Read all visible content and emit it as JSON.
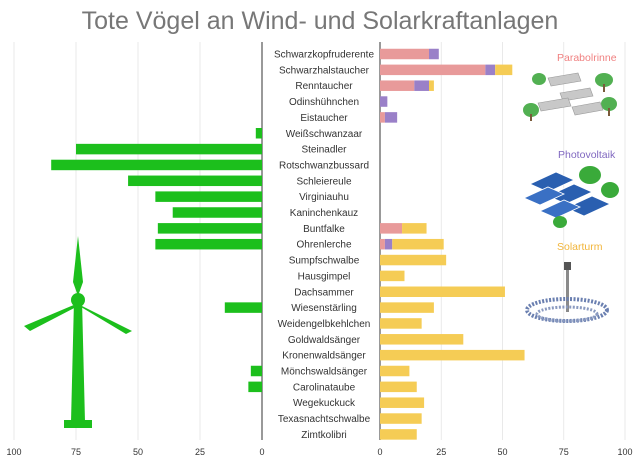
{
  "chart_data": {
    "type": "bar",
    "title": "Tote Vögel an Wind- und Solarkraftanlagen",
    "categories": [
      "Schwarzkopfruderente",
      "Schwarzhalstaucher",
      "Renntaucher",
      "Odinshühnchen",
      "Eistaucher",
      "Weißschwanzaar",
      "Steinadler",
      "Rotschwanzbussard",
      "Schleiereule",
      "Virginiauhu",
      "Kaninchenkauz",
      "Buntfalke",
      "Ohrenlerche",
      "Sumpfschwalbe",
      "Hausgimpel",
      "Dachsammer",
      "Wiesenstärling",
      "Weidengelbkehlchen",
      "Goldwaldsänger",
      "Kronenwaldsänger",
      "Mönchswaldsänger",
      "Carolinataube",
      "Wegekuckuck",
      "Texasnachtschwalbe",
      "Zimtkolibri"
    ],
    "wind": {
      "values": [
        0,
        0,
        0,
        0,
        0,
        2.5,
        75,
        85,
        54,
        43,
        36,
        42,
        43,
        0,
        0,
        0,
        15,
        0,
        0,
        0,
        4.5,
        5.5,
        0,
        0,
        0
      ],
      "color": "#1cbf1c",
      "xlim": [
        0,
        100
      ],
      "ticks": [
        100,
        75,
        50,
        25,
        0
      ]
    },
    "solar": {
      "series": [
        {
          "name": "Parabolrinne",
          "color": "#e89a9a",
          "values": [
            20,
            43,
            14,
            0,
            2,
            0,
            0,
            0,
            0,
            0,
            0,
            9,
            2,
            0,
            0,
            0,
            0,
            0,
            0,
            0,
            0,
            0,
            0,
            0,
            0
          ]
        },
        {
          "name": "Photovoltaik",
          "color": "#9a80c8",
          "values": [
            4,
            4,
            6,
            3,
            5,
            0,
            0,
            0,
            0,
            0,
            0,
            0,
            3,
            0,
            0,
            0,
            0,
            0,
            0,
            0,
            0,
            0,
            0,
            0,
            0
          ]
        },
        {
          "name": "Solarturm",
          "color": "#f5cc55",
          "values": [
            0,
            7,
            2,
            0,
            0,
            0,
            0,
            0,
            0,
            0,
            0,
            10,
            21,
            27,
            10,
            51,
            22,
            17,
            34,
            59,
            12,
            15,
            18,
            17,
            15
          ]
        }
      ],
      "xlim": [
        0,
        100
      ],
      "ticks": [
        0,
        25,
        50,
        75,
        100
      ]
    }
  },
  "legend": {
    "parabolrinne": {
      "label": "Parabolrinne",
      "icon": "parabolic-trough-icon"
    },
    "photovoltaik": {
      "label": "Photovoltaik",
      "icon": "solar-panel-icon"
    },
    "solarturm": {
      "label": "Solarturm",
      "icon": "solar-tower-icon"
    }
  },
  "illustration": {
    "wind_turbine": "wind-turbine-icon"
  }
}
